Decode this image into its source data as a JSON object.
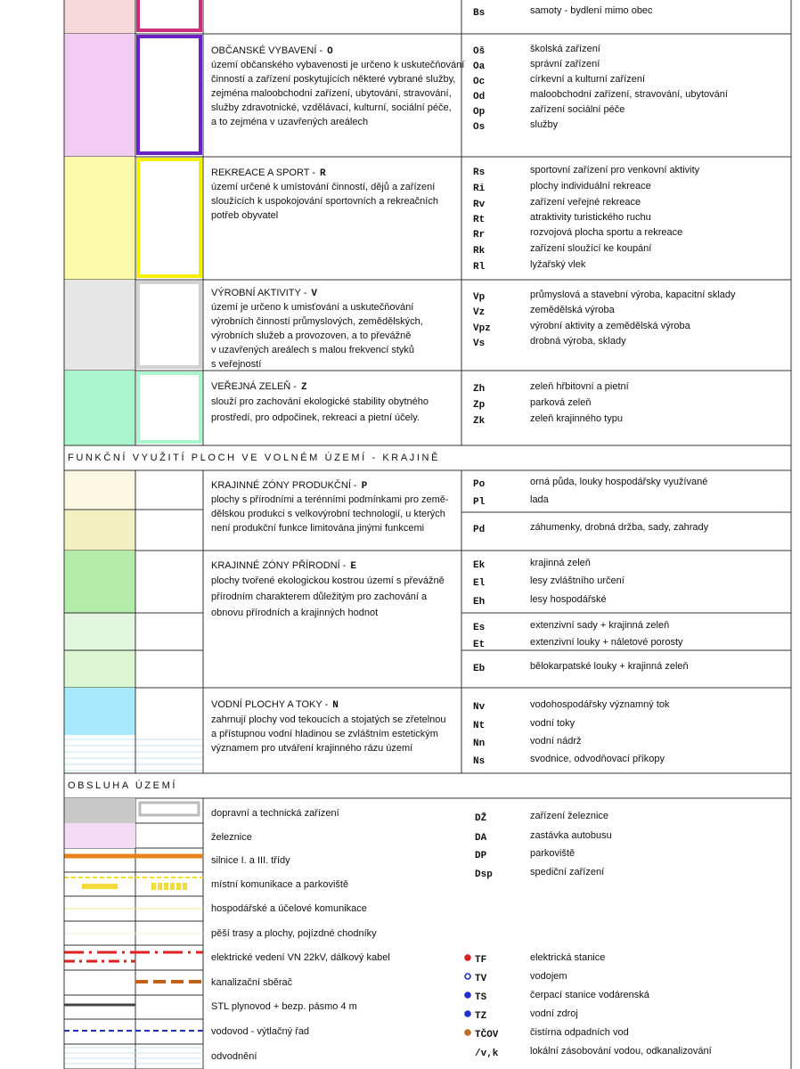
{
  "rows": [
    {
      "codes": [
        {
          "code": "Bs",
          "label": "samoty - bydlení mimo obec"
        }
      ]
    },
    {
      "title": "OBČANSKÉ VYBAVENÍ -",
      "letter": "O",
      "description": [
        "území občanského vybavenosti je určeno k uskutečňování",
        "činností a zařízení poskytujících některé vybrané služby,",
        "zejména maloobchodní zařízení, ubytování, stravování,",
        "služby zdravotnické, vzdělávací, kulturní, sociální péče,",
        "a to zejména v uzavřených areálech"
      ],
      "codes": [
        {
          "code": "Oš",
          "label": "školská zařízení"
        },
        {
          "code": "Oa",
          "label": "správní zařízení"
        },
        {
          "code": "Oc",
          "label": "církevní a kulturní zařízení"
        },
        {
          "code": "Od",
          "label": "maloobchodní zařízení, stravování, ubytování"
        },
        {
          "code": "Op",
          "label": "zařízení sociální péče"
        },
        {
          "code": "Os",
          "label": "služby"
        }
      ]
    },
    {
      "title": "REKREACE A SPORT -",
      "letter": "R",
      "description": [
        "území určené k umístování činností, dějů a zařízení",
        "sloužících k uspokojování sportovních a rekreačních",
        "potřeb obyvatel"
      ],
      "codes": [
        {
          "code": "Rs",
          "label": "sportovní zařízení pro venkovní aktivity"
        },
        {
          "code": "Ri",
          "label": "plochy individuální rekreace"
        },
        {
          "code": "Rv",
          "label": "zařízení veřejné rekreace"
        },
        {
          "code": "Rt",
          "label": "atraktivity turistického ruchu"
        },
        {
          "code": "Rr",
          "label": "rozvojová plocha sportu a rekreace"
        },
        {
          "code": "Rk",
          "label": "zařízení sloužící ke koupání"
        },
        {
          "code": "Rl",
          "label": "lyžařský vlek"
        }
      ]
    },
    {
      "title": "VÝROBNÍ AKTIVITY -",
      "letter": "V",
      "description": [
        "území je určeno k umisťování a uskutečňování",
        "výrobních činností průmyslových, zemědělských,",
        "výrobních služeb a provozoven, a to převážně",
        "v uzavřených areálech s malou frekvencí styků",
        "s veřejností"
      ],
      "codes": [
        {
          "code": "Vp",
          "label": "průmyslová a stavební výroba, kapacitní sklady"
        },
        {
          "code": "Vz",
          "label": "zemědělská výroba"
        },
        {
          "code": "Vpz",
          "label": "výrobní aktivity a zemědělská výroba"
        },
        {
          "code": "Vs",
          "label": "drobná výroba, sklady"
        }
      ]
    },
    {
      "title": "VEŘEJNÁ ZELEŇ -",
      "letter": "Z",
      "description": [
        "slouží pro zachování ekologické stability obytného",
        "prostředí, pro odpočinek, rekreaci a pietní účely."
      ],
      "codes": [
        {
          "code": "Zh",
          "label": "zeleň hřbitovní a pietní"
        },
        {
          "code": "Zp",
          "label": "parková zeleň"
        },
        {
          "code": "Zk",
          "label": "zeleň krajinného typu"
        }
      ]
    },
    {
      "title": "KRAJINNÉ ZÓNY PRODUKČNÍ -",
      "letter": "P",
      "description": [
        "plochy s přírodními a terénními podmínkami pro země-",
        "dělskou produkci s velkovýrobní technologií, u kterých",
        "není produkční funkce limitována jinými funkcemi"
      ],
      "codes": [
        {
          "code": "Po",
          "label": "orná půda, louky hospodářsky využívané"
        },
        {
          "code": "Pl",
          "label": "lada"
        },
        {
          "code": "Pd",
          "label": "záhumenky, drobná držba, sady, zahrady"
        }
      ]
    },
    {
      "title": "KRAJINNÉ ZÓNY PŘÍRODNÍ -",
      "letter": "E",
      "description": [
        "plochy tvořené ekologickou kostrou území s převážně",
        "přírodním charakterem důležitým pro zachování a",
        "obnovu přírodních a krajinných hodnot"
      ],
      "codes": [
        {
          "code": "Ek",
          "label": "krajinná zeleň"
        },
        {
          "code": "El",
          "label": "lesy zvláštního určení"
        },
        {
          "code": "Eh",
          "label": "lesy hospodářské"
        },
        {
          "code": "Es",
          "label": "extenzivní sady + krajinná zeleň"
        },
        {
          "code": "Et",
          "label": "extenzivní louky + náletové porosty"
        },
        {
          "code": "Eb",
          "label": "bělokarpatské louky + krajinná zeleň"
        }
      ]
    },
    {
      "title": "VODNÍ PLOCHY A TOKY -",
      "letter": "N",
      "description": [
        "zahrnují plochy vod tekoucích a stojatých se zřetelnou",
        "a přístupnou vodní hladinou se zvláštním estetickým",
        "významem pro utváření krajinného rázu území"
      ],
      "codes": [
        {
          "code": "Nv",
          "label": "vodohospodářsky významný tok"
        },
        {
          "code": "Nt",
          "label": "vodní toky"
        },
        {
          "code": "Nn",
          "label": "vodní nádrž"
        },
        {
          "code": "Ns",
          "label": "svodnice, odvodňovací příkopy"
        }
      ]
    }
  ],
  "sections": [
    "FUNKČNÍ VYUŽITÍ PLOCH VE VOLNÉM ÚZEMÍ - KRAJINĚ",
    "OBSLUHA ÚZEMÍ"
  ],
  "services": {
    "items": [
      "dopravní a technická zařízení",
      "železnice",
      "silnice I. a III. třídy",
      "místní komunikace a parkoviště",
      "hospodářské a účelové komunikace",
      "pěší trasy a plochy, pojízdné chodníky",
      "elektrické vedení VN 22kV, dálkový kabel",
      "kanalizační sběrač",
      "STL plynovod + bezp. pásmo 4 m",
      "vodovod - výtlačný řad",
      "odvodnění"
    ],
    "codes": [
      {
        "code": "DŽ",
        "label": "zařízení železnice"
      },
      {
        "code": "DA",
        "label": "zastávka autobusu"
      },
      {
        "code": "DP",
        "label": "parkoviště"
      },
      {
        "code": "Dsp",
        "label": "spediční zařízení"
      },
      {
        "code": "TF",
        "label": "elektrická stanice"
      },
      {
        "code": "TV",
        "label": "vodojem"
      },
      {
        "code": "TS",
        "label": "čerpací stanice vodárenská"
      },
      {
        "code": "TZ",
        "label": "vodní zdroj"
      },
      {
        "code": "TČOV",
        "label": "čistírna odpadních vod"
      },
      {
        "code": "/v,k",
        "label": "lokální zásobování vodou, odkanalizování"
      }
    ]
  }
}
